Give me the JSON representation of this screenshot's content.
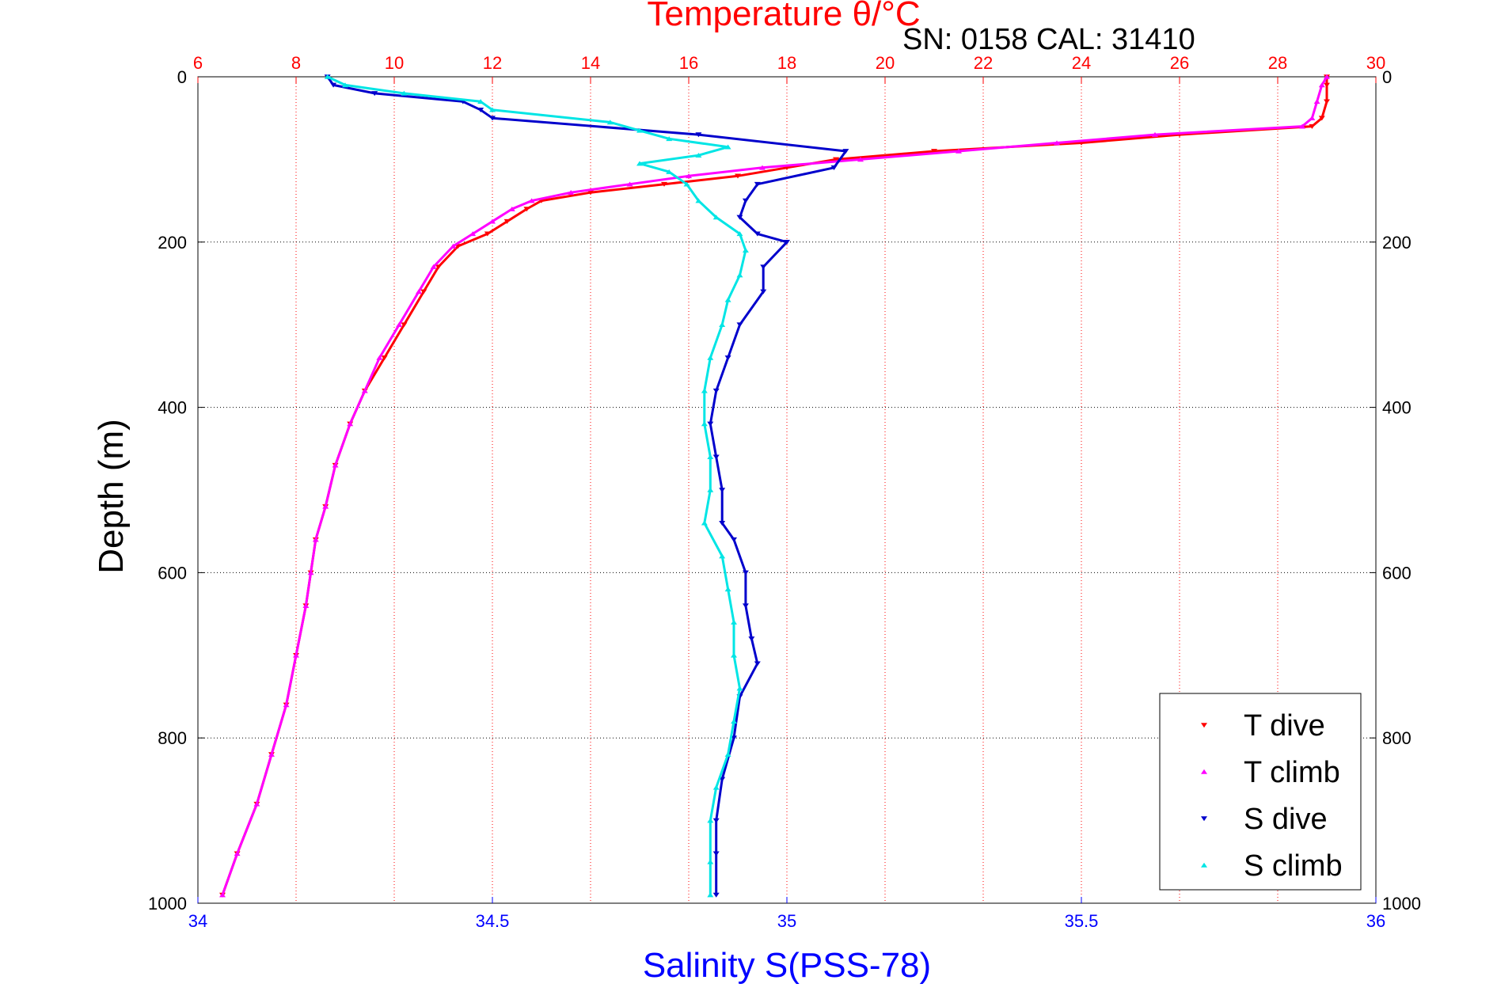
{
  "chart_data": {
    "type": "scatter",
    "title": "SN: 0158  CAL: 31410",
    "top_axis": {
      "label": "Temperature θ/°C",
      "range": [
        6,
        30
      ],
      "ticks": [
        "6",
        "8",
        "10",
        "12",
        "14",
        "16",
        "18",
        "20",
        "22",
        "24",
        "26",
        "28",
        "30"
      ],
      "color": "#ff0000"
    },
    "bottom_axis": {
      "label": "Salinity S(PSS-78)",
      "range": [
        34,
        36
      ],
      "ticks": [
        "34",
        "34.5",
        "35",
        "35.5",
        "36"
      ],
      "color": "#0000ff"
    },
    "y_axis": {
      "label": "Depth (m)",
      "range": [
        0,
        1000
      ],
      "inverted": true,
      "ticks": [
        "0",
        "200",
        "400",
        "600",
        "800",
        "1000"
      ]
    },
    "grid": true,
    "legend": {
      "position": "bottom-right",
      "entries": [
        {
          "label": "T dive",
          "color": "#ff0000",
          "marker": "triangle-down"
        },
        {
          "label": "T climb",
          "color": "#ff00ff",
          "marker": "triangle-up"
        },
        {
          "label": "S dive",
          "color": "#0000cc",
          "marker": "triangle-down"
        },
        {
          "label": "S climb",
          "color": "#00e5e5",
          "marker": "triangle-up"
        }
      ]
    },
    "series": [
      {
        "name": "T dive",
        "axis": "top",
        "color": "#ff0000",
        "depth": [
          0,
          10,
          30,
          50,
          60,
          70,
          80,
          90,
          100,
          110,
          120,
          130,
          140,
          150,
          160,
          175,
          190,
          205,
          230,
          260,
          300,
          340,
          380,
          420,
          470,
          520,
          560,
          600,
          640,
          700,
          760,
          820,
          880,
          940,
          990
        ],
        "values": [
          29.0,
          29.0,
          29.0,
          28.9,
          28.7,
          26.0,
          24.0,
          21.0,
          19.0,
          18.0,
          17.0,
          15.5,
          14.0,
          13.0,
          12.7,
          12.3,
          11.9,
          11.3,
          10.9,
          10.6,
          10.2,
          9.8,
          9.4,
          9.1,
          8.8,
          8.6,
          8.4,
          8.3,
          8.2,
          8.0,
          7.8,
          7.5,
          7.2,
          6.8,
          6.5
        ]
      },
      {
        "name": "T climb",
        "axis": "top",
        "color": "#ff00ff",
        "depth": [
          0,
          10,
          30,
          50,
          60,
          70,
          80,
          90,
          100,
          110,
          120,
          130,
          140,
          150,
          160,
          175,
          190,
          205,
          230,
          260,
          300,
          340,
          380,
          420,
          470,
          520,
          560,
          600,
          640,
          700,
          760,
          820,
          880,
          940,
          990
        ],
        "values": [
          29.0,
          28.9,
          28.8,
          28.7,
          28.5,
          25.5,
          23.5,
          21.5,
          19.5,
          17.5,
          16.0,
          14.8,
          13.6,
          12.8,
          12.4,
          12.0,
          11.6,
          11.2,
          10.8,
          10.5,
          10.1,
          9.7,
          9.4,
          9.1,
          8.8,
          8.6,
          8.4,
          8.3,
          8.2,
          8.0,
          7.8,
          7.5,
          7.2,
          6.8,
          6.5
        ]
      },
      {
        "name": "S dive",
        "axis": "bottom",
        "color": "#0000cc",
        "depth": [
          0,
          10,
          20,
          30,
          40,
          50,
          70,
          90,
          110,
          130,
          150,
          170,
          190,
          200,
          230,
          260,
          300,
          340,
          380,
          420,
          460,
          500,
          540,
          560,
          600,
          640,
          680,
          710,
          750,
          800,
          850,
          900,
          940,
          990
        ],
        "values": [
          34.22,
          34.23,
          34.3,
          34.45,
          34.48,
          34.5,
          34.85,
          35.1,
          35.08,
          34.95,
          34.93,
          34.92,
          34.95,
          35.0,
          34.96,
          34.96,
          34.92,
          34.9,
          34.88,
          34.87,
          34.88,
          34.89,
          34.89,
          34.91,
          34.93,
          34.93,
          34.94,
          34.95,
          34.92,
          34.91,
          34.89,
          34.88,
          34.88,
          34.88
        ]
      },
      {
        "name": "S climb",
        "axis": "bottom",
        "color": "#00e5e5",
        "depth": [
          0,
          10,
          20,
          30,
          40,
          55,
          65,
          75,
          85,
          95,
          105,
          115,
          130,
          150,
          170,
          190,
          210,
          240,
          270,
          300,
          340,
          380,
          420,
          460,
          500,
          540,
          580,
          620,
          660,
          700,
          740,
          780,
          820,
          860,
          900,
          950,
          990
        ],
        "values": [
          34.22,
          34.25,
          34.35,
          34.48,
          34.5,
          34.7,
          34.75,
          34.8,
          34.9,
          34.85,
          34.75,
          34.8,
          34.83,
          34.85,
          34.88,
          34.92,
          34.93,
          34.92,
          34.9,
          34.89,
          34.87,
          34.86,
          34.86,
          34.87,
          34.87,
          34.86,
          34.89,
          34.9,
          34.91,
          34.91,
          34.92,
          34.91,
          34.9,
          34.88,
          34.87,
          34.87,
          34.87
        ]
      }
    ]
  }
}
